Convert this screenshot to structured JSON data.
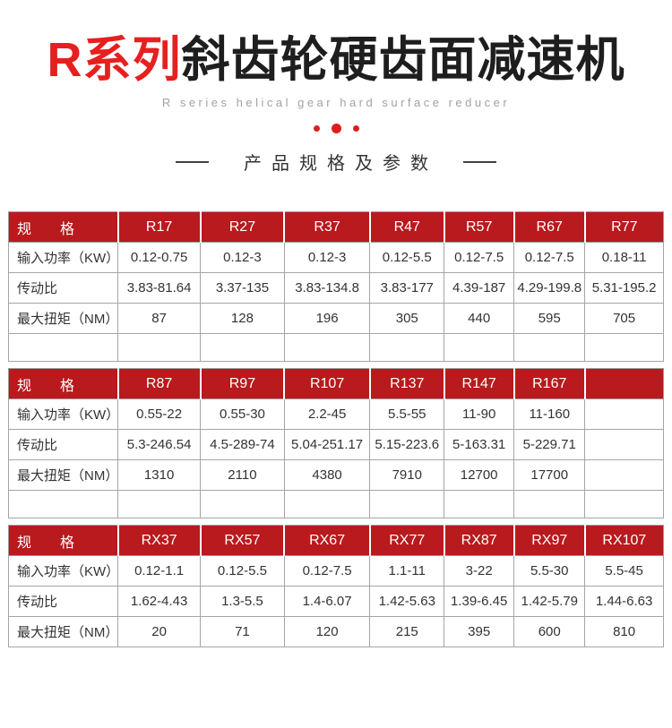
{
  "page": {
    "title_red": "R系列",
    "title_dark": "斜齿轮硬齿面减速机",
    "subtitle": "R series helical gear hard surface reducer",
    "section_title": "产品规格及参数"
  },
  "colors": {
    "title_red": "#e6201f",
    "table_header_red": "#b81a1e",
    "dot_red": "#dc1e1f",
    "text_dark": "#333333",
    "subtitle_gray": "#a2a2a2",
    "border_gray": "#a5a5a5"
  },
  "tables": [
    {
      "header": [
        "规　　格",
        "R17",
        "R27",
        "R37",
        "R47",
        "R57",
        "R67",
        "R77"
      ],
      "rows": [
        {
          "label": "输入功率（KW）",
          "values": [
            "0.12-0.75",
            "0.12-3",
            "0.12-3",
            "0.12-5.5",
            "0.12-7.5",
            "0.12-7.5",
            "0.18-11"
          ]
        },
        {
          "label": "传动比",
          "values": [
            "3.83-81.64",
            "3.37-135",
            "3.83-134.8",
            "3.83-177",
            "4.39-187",
            "4.29-199.8",
            "5.31-195.2"
          ]
        },
        {
          "label": "最大扭矩（NM）",
          "values": [
            "87",
            "128",
            "196",
            "305",
            "440",
            "595",
            "705"
          ]
        }
      ],
      "trailing_empty_row": true
    },
    {
      "header": [
        "规　　格",
        "R87",
        "R97",
        "R107",
        "R137",
        "R147",
        "R167",
        ""
      ],
      "rows": [
        {
          "label": "输入功率（KW）",
          "values": [
            "0.55-22",
            "0.55-30",
            "2.2-45",
            "5.5-55",
            "11-90",
            "11-160",
            ""
          ]
        },
        {
          "label": "传动比",
          "values": [
            "5.3-246.54",
            "4.5-289-74",
            "5.04-251.17",
            "5.15-223.6",
            "5-163.31",
            "5-229.71",
            ""
          ]
        },
        {
          "label": "最大扭矩（NM）",
          "values": [
            "1310",
            "2110",
            "4380",
            "7910",
            "12700",
            "17700",
            ""
          ]
        }
      ],
      "trailing_empty_row": true
    },
    {
      "header": [
        "规　　格",
        "RX37",
        "RX57",
        "RX67",
        "RX77",
        "RX87",
        "RX97",
        "RX107"
      ],
      "rows": [
        {
          "label": "输入功率（KW）",
          "values": [
            "0.12-1.1",
            "0.12-5.5",
            "0.12-7.5",
            "1.1-11",
            "3-22",
            "5.5-30",
            "5.5-45"
          ]
        },
        {
          "label": "传动比",
          "values": [
            "1.62-4.43",
            "1.3-5.5",
            "1.4-6.07",
            "1.42-5.63",
            "1.39-6.45",
            "1.42-5.79",
            "1.44-6.63"
          ]
        },
        {
          "label": "最大扭矩（NM）",
          "values": [
            "20",
            "71",
            "120",
            "215",
            "395",
            "600",
            "810"
          ]
        }
      ],
      "trailing_empty_row": false
    }
  ],
  "layout": {
    "column_widths": [
      "16.7%",
      "12.6%",
      "12.8%",
      "13.1%",
      "11.3%",
      "10.7%",
      "10.8%",
      "12.0%"
    ]
  }
}
